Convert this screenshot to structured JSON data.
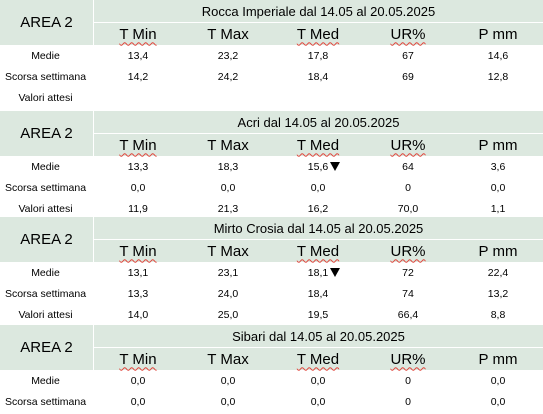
{
  "blocks": [
    {
      "area": "AREA 2",
      "title": "Rocca Imperiale  dal 14.05 al 20.05.2025",
      "columns": [
        "T Min",
        "T Max",
        "T Med",
        "UR%",
        "P mm"
      ],
      "rows": [
        {
          "label": "Medie",
          "values": [
            "13,4",
            "23,2",
            "17,8",
            "67",
            "14,6"
          ]
        },
        {
          "label": "Scorsa settimana",
          "values": [
            "14,2",
            "24,2",
            "18,4",
            "69",
            "12,8"
          ]
        },
        {
          "label": "Valori attesi",
          "values": [
            "",
            "",
            "",
            "",
            ""
          ]
        }
      ]
    },
    {
      "area": "AREA 2",
      "title": "Acri dal 14.05 al 20.05.2025",
      "columns": [
        "T Min",
        "T Max",
        "T Med",
        "UR%",
        "P mm"
      ],
      "rows": [
        {
          "label": "Medie",
          "values": [
            "13,3",
            "18,3",
            "15,6",
            "64",
            "3,6"
          ],
          "trend": "down-triangle-icon"
        },
        {
          "label": "Scorsa settimana",
          "values": [
            "0,0",
            "0,0",
            "0,0",
            "0",
            "0,0"
          ]
        },
        {
          "label": "Valori attesi",
          "values": [
            "11,9",
            "21,3",
            "16,2",
            "70,0",
            "1,1"
          ]
        }
      ]
    },
    {
      "area": "AREA 2",
      "title": "Mirto Crosia dal 14.05 al 20.05.2025",
      "columns": [
        "T Min",
        "T Max",
        "T Med",
        "UR%",
        "P mm"
      ],
      "rows": [
        {
          "label": "Medie",
          "values": [
            "13,1",
            "23,1",
            "18,1",
            "72",
            "22,4"
          ],
          "trend": "down-triangle-icon"
        },
        {
          "label": "Scorsa settimana",
          "values": [
            "13,3",
            "24,0",
            "18,4",
            "74",
            "13,2"
          ]
        },
        {
          "label": "Valori attesi",
          "values": [
            "14,0",
            "25,0",
            "19,5",
            "66,4",
            "8,8"
          ]
        }
      ]
    },
    {
      "area": "AREA 2",
      "title": "Sibari dal 14.05 al 20.05.2025",
      "columns": [
        "T Min",
        "T Max",
        "T Med",
        "UR%",
        "P mm"
      ],
      "rows": [
        {
          "label": "Medie",
          "values": [
            "0,0",
            "0,0",
            "0,0",
            "0",
            "0,0"
          ]
        },
        {
          "label": "Scorsa settimana",
          "values": [
            "0,0",
            "0,0",
            "0,0",
            "0",
            "0,0"
          ]
        }
      ]
    }
  ],
  "colors": {
    "header_bg": "#dce8df",
    "spellcheck_underline": "#e0433a"
  }
}
